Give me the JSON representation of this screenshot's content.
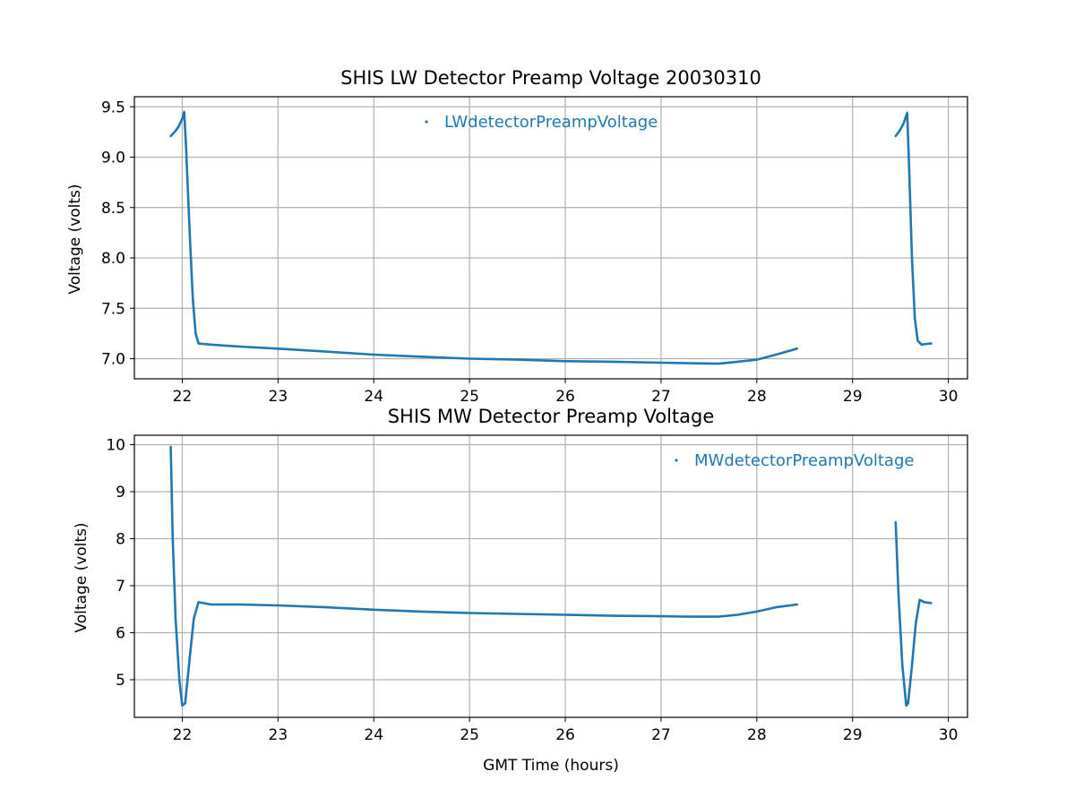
{
  "chart_data": [
    {
      "type": "line",
      "title": "SHIS LW Detector Preamp Voltage 20030310",
      "xlabel": "",
      "ylabel": "Voltage (volts)",
      "xlim": [
        21.5,
        30.2
      ],
      "ylim": [
        6.8,
        9.6
      ],
      "xticks": [
        22,
        23,
        24,
        25,
        26,
        27,
        28,
        29,
        30
      ],
      "yticks": [
        7.0,
        7.5,
        8.0,
        8.5,
        9.0,
        9.5
      ],
      "ytick_labels": [
        "7.0",
        "7.5",
        "8.0",
        "8.5",
        "9.0",
        "9.5"
      ],
      "grid": true,
      "legend_position": "top-center",
      "color": "#1f77b4",
      "series": [
        {
          "name": "LWdetectorPreampVoltage",
          "segments": [
            [
              [
                21.88,
                9.21
              ],
              [
                21.92,
                9.25
              ],
              [
                21.96,
                9.3
              ],
              [
                22.0,
                9.38
              ],
              [
                22.02,
                9.45
              ],
              [
                22.04,
                9.1
              ],
              [
                22.08,
                8.2
              ],
              [
                22.11,
                7.6
              ],
              [
                22.14,
                7.25
              ],
              [
                22.17,
                7.15
              ],
              [
                22.3,
                7.14
              ],
              [
                22.6,
                7.12
              ],
              [
                23.0,
                7.1
              ],
              [
                23.5,
                7.07
              ],
              [
                24.0,
                7.04
              ],
              [
                24.5,
                7.02
              ],
              [
                25.0,
                7.0
              ],
              [
                25.5,
                6.99
              ],
              [
                26.0,
                6.975
              ],
              [
                26.5,
                6.97
              ],
              [
                27.0,
                6.96
              ],
              [
                27.3,
                6.955
              ],
              [
                27.6,
                6.95
              ],
              [
                27.8,
                6.97
              ],
              [
                28.0,
                6.99
              ],
              [
                28.2,
                7.04
              ],
              [
                28.42,
                7.1
              ]
            ],
            [
              [
                29.45,
                9.21
              ],
              [
                29.49,
                9.26
              ],
              [
                29.53,
                9.33
              ],
              [
                29.57,
                9.44
              ],
              [
                29.59,
                8.9
              ],
              [
                29.62,
                8.0
              ],
              [
                29.65,
                7.4
              ],
              [
                29.68,
                7.18
              ],
              [
                29.72,
                7.14
              ],
              [
                29.8,
                7.15
              ],
              [
                29.82,
                7.15
              ]
            ]
          ]
        }
      ]
    },
    {
      "type": "line",
      "title": "SHIS MW Detector Preamp Voltage",
      "xlabel": "GMT Time (hours)",
      "ylabel": "Voltage (volts)",
      "xlim": [
        21.5,
        30.2
      ],
      "ylim": [
        4.2,
        10.2
      ],
      "xticks": [
        22,
        23,
        24,
        25,
        26,
        27,
        28,
        29,
        30
      ],
      "yticks": [
        5,
        6,
        7,
        8,
        9,
        10
      ],
      "ytick_labels": [
        "5",
        "6",
        "7",
        "8",
        "9",
        "10"
      ],
      "grid": true,
      "legend_position": "top-right",
      "color": "#1f77b4",
      "series": [
        {
          "name": "MWdetectorPreampVoltage",
          "segments": [
            [
              [
                21.88,
                9.95
              ],
              [
                21.9,
                8.0
              ],
              [
                21.93,
                6.3
              ],
              [
                21.97,
                5.0
              ],
              [
                22.0,
                4.45
              ],
              [
                22.03,
                4.5
              ],
              [
                22.07,
                5.3
              ],
              [
                22.12,
                6.3
              ],
              [
                22.17,
                6.65
              ],
              [
                22.3,
                6.6
              ],
              [
                22.6,
                6.6
              ],
              [
                23.0,
                6.58
              ],
              [
                23.5,
                6.54
              ],
              [
                24.0,
                6.49
              ],
              [
                24.5,
                6.45
              ],
              [
                25.0,
                6.42
              ],
              [
                25.5,
                6.4
              ],
              [
                26.0,
                6.38
              ],
              [
                26.5,
                6.36
              ],
              [
                27.0,
                6.35
              ],
              [
                27.3,
                6.34
              ],
              [
                27.6,
                6.34
              ],
              [
                27.8,
                6.38
              ],
              [
                28.0,
                6.45
              ],
              [
                28.2,
                6.54
              ],
              [
                28.42,
                6.6
              ]
            ],
            [
              [
                29.45,
                8.35
              ],
              [
                29.48,
                6.8
              ],
              [
                29.52,
                5.3
              ],
              [
                29.56,
                4.45
              ],
              [
                29.58,
                4.5
              ],
              [
                29.62,
                5.3
              ],
              [
                29.66,
                6.2
              ],
              [
                29.7,
                6.7
              ],
              [
                29.75,
                6.65
              ],
              [
                29.82,
                6.63
              ]
            ]
          ]
        }
      ]
    }
  ]
}
